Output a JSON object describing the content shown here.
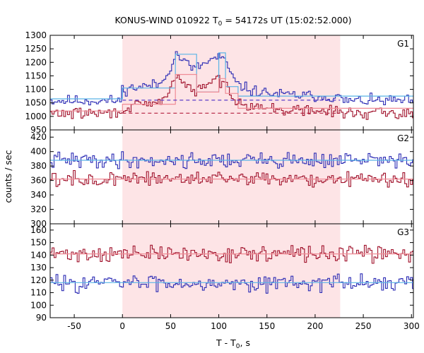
{
  "chart_data": {
    "type": "line",
    "title_prefix": "KONUS-WIND 010922 T",
    "title_sub": "0",
    "title_suffix": " = 54172s UT (15:02:52.000)",
    "xlabel_prefix": "T - T",
    "xlabel_sub": "0",
    "xlabel_suffix": ", s",
    "ylabel": "counts / sec",
    "xlim": [
      -75,
      302
    ],
    "xticks": [
      -50,
      0,
      50,
      100,
      150,
      200,
      250,
      300
    ],
    "highlight_interval": [
      0,
      226
    ],
    "highlight_color": "#fde4e6",
    "colors": {
      "blue": "#2a2ab4",
      "red": "#a0102a",
      "light_blue": "#5ab4e6",
      "light_red": "#f08c96",
      "dashed": "#b41e3c",
      "dashed_blue": "#5a3cc8"
    },
    "panels": [
      {
        "label": "G1",
        "ylim": [
          950,
          1300
        ],
        "yticks": [
          950,
          1000,
          1050,
          1100,
          1150,
          1200,
          1250,
          1300
        ],
        "series": [
          {
            "color": "blue",
            "base": 1058,
            "noise": 22,
            "seed": 11,
            "bumps": [
              [
                0,
                1100
              ],
              [
                40,
                1120
              ],
              [
                50,
                1185
              ],
              [
                56,
                1230
              ],
              [
                74,
                1175
              ],
              [
                100,
                1222
              ],
              [
                108,
                1195
              ],
              [
                118,
                1120
              ],
              [
                135,
                1095
              ],
              [
                160,
                1082
              ],
              [
                226,
                1070
              ]
            ]
          },
          {
            "color": "red",
            "base": 1012,
            "noise": 22,
            "seed": 29,
            "bumps": [
              [
                0,
                1030
              ],
              [
                40,
                1050
              ],
              [
                50,
                1110
              ],
              [
                56,
                1150
              ],
              [
                74,
                1090
              ],
              [
                100,
                1140
              ],
              [
                108,
                1110
              ],
              [
                118,
                1060
              ],
              [
                135,
                1040
              ],
              [
                160,
                1025
              ],
              [
                226,
                1018
              ]
            ]
          }
        ],
        "fits": [
          {
            "color": "light_blue",
            "style": "solid",
            "points": [
              [
                -75,
                1065
              ],
              [
                0,
                1065
              ],
              [
                0,
                1105
              ],
              [
                55,
                1105
              ],
              [
                55,
                1230
              ],
              [
                77,
                1230
              ],
              [
                77,
                1090
              ],
              [
                100,
                1090
              ],
              [
                100,
                1235
              ],
              [
                107,
                1235
              ],
              [
                107,
                1110
              ],
              [
                120,
                1110
              ],
              [
                120,
                1075
              ],
              [
                302,
                1075
              ]
            ]
          },
          {
            "color": "light_red",
            "style": "solid",
            "points": [
              [
                -75,
                1020
              ],
              [
                0,
                1020
              ],
              [
                0,
                1045
              ],
              [
                55,
                1045
              ],
              [
                55,
                1155
              ],
              [
                77,
                1155
              ],
              [
                77,
                1090
              ],
              [
                100,
                1090
              ],
              [
                100,
                1140
              ],
              [
                107,
                1140
              ],
              [
                107,
                1085
              ],
              [
                120,
                1085
              ],
              [
                120,
                1030
              ],
              [
                302,
                1030
              ]
            ]
          },
          {
            "color": "dashed_blue",
            "style": "dashed",
            "points": [
              [
                0,
                1060
              ],
              [
                226,
                1060
              ]
            ]
          },
          {
            "color": "dashed",
            "style": "dashed",
            "points": [
              [
                0,
                1012
              ],
              [
                226,
                1012
              ]
            ]
          }
        ]
      },
      {
        "label": "G2",
        "ylim": [
          300,
          430
        ],
        "yticks": [
          300,
          320,
          340,
          360,
          380,
          400,
          420
        ],
        "series": [
          {
            "color": "blue",
            "base": 388,
            "noise": 12,
            "seed": 41,
            "bumps": []
          },
          {
            "color": "red",
            "base": 362,
            "noise": 11,
            "seed": 57,
            "bumps": []
          }
        ],
        "fits": [
          {
            "color": "light_blue",
            "style": "solid",
            "points": [
              [
                -75,
                388
              ],
              [
                302,
                388
              ]
            ]
          },
          {
            "color": "light_red",
            "style": "solid",
            "points": [
              [
                -75,
                362
              ],
              [
                302,
                362
              ]
            ]
          }
        ]
      },
      {
        "label": "G3",
        "ylim": [
          90,
          165
        ],
        "yticks": [
          90,
          100,
          110,
          120,
          130,
          140,
          150,
          160
        ],
        "series": [
          {
            "color": "red",
            "base": 141,
            "noise": 7,
            "seed": 71,
            "bumps": []
          },
          {
            "color": "blue",
            "base": 118,
            "noise": 7,
            "seed": 83,
            "bumps": []
          }
        ],
        "fits": [
          {
            "color": "light_red",
            "style": "solid",
            "points": [
              [
                -75,
                141
              ],
              [
                302,
                141
              ]
            ]
          },
          {
            "color": "light_blue",
            "style": "solid",
            "points": [
              [
                -75,
                118
              ],
              [
                302,
                118
              ]
            ]
          }
        ]
      }
    ]
  }
}
